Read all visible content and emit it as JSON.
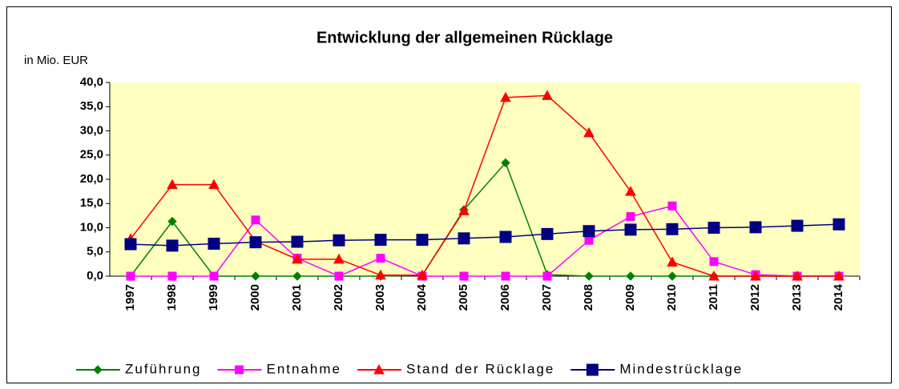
{
  "chart_data": {
    "type": "line",
    "title": "Entwicklung der allgemeinen Rücklage",
    "y_label": "in Mio. EUR",
    "categories": [
      "1997",
      "1998",
      "1999",
      "2000",
      "2001",
      "2002",
      "2003",
      "2004",
      "2005",
      "2006",
      "2007",
      "2008",
      "2009",
      "2010",
      "2011",
      "2012",
      "2013",
      "2014"
    ],
    "series": [
      {
        "name": "Zuführung",
        "color": "#008000",
        "marker": "diamond",
        "values": [
          0,
          11.3,
          0,
          0,
          0,
          0,
          0,
          0.2,
          13.7,
          23.4,
          0.3,
          0,
          0,
          0,
          0,
          0,
          0,
          0
        ]
      },
      {
        "name": "Entnahme",
        "color": "#ff00ff",
        "marker": "square",
        "values": [
          0,
          0,
          0,
          11.6,
          3.7,
          0,
          3.7,
          0,
          0,
          0,
          0,
          7.4,
          12.3,
          14.5,
          3.0,
          0.3,
          0,
          0
        ]
      },
      {
        "name": "Stand der Rücklage",
        "color": "#ff0000",
        "marker": "triangle",
        "values": [
          7.7,
          18.9,
          18.9,
          7.2,
          3.5,
          3.5,
          0.2,
          0.2,
          13.5,
          36.9,
          37.3,
          29.6,
          17.5,
          2.9,
          0,
          0,
          0,
          0
        ]
      },
      {
        "name": "Mindestrücklage",
        "color": "#000080",
        "marker": "bigsquare",
        "values": [
          6.6,
          6.3,
          6.7,
          7.0,
          7.1,
          7.4,
          7.5,
          7.5,
          7.8,
          8.1,
          8.7,
          9.3,
          9.6,
          9.7,
          10.0,
          10.1,
          10.4,
          10.7
        ]
      }
    ],
    "ylim": [
      0,
      40
    ],
    "yticks": [
      {
        "value": 0,
        "label": "0,0"
      },
      {
        "value": 5,
        "label": "5,0"
      },
      {
        "value": 10,
        "label": "10,0"
      },
      {
        "value": 15,
        "label": "15,0"
      },
      {
        "value": 20,
        "label": "20,0"
      },
      {
        "value": 25,
        "label": "25,0"
      },
      {
        "value": 30,
        "label": "30,0"
      },
      {
        "value": 35,
        "label": "35,0"
      },
      {
        "value": 40,
        "label": "40,0"
      }
    ],
    "background": "#ffffc0",
    "legend": "bottom"
  }
}
